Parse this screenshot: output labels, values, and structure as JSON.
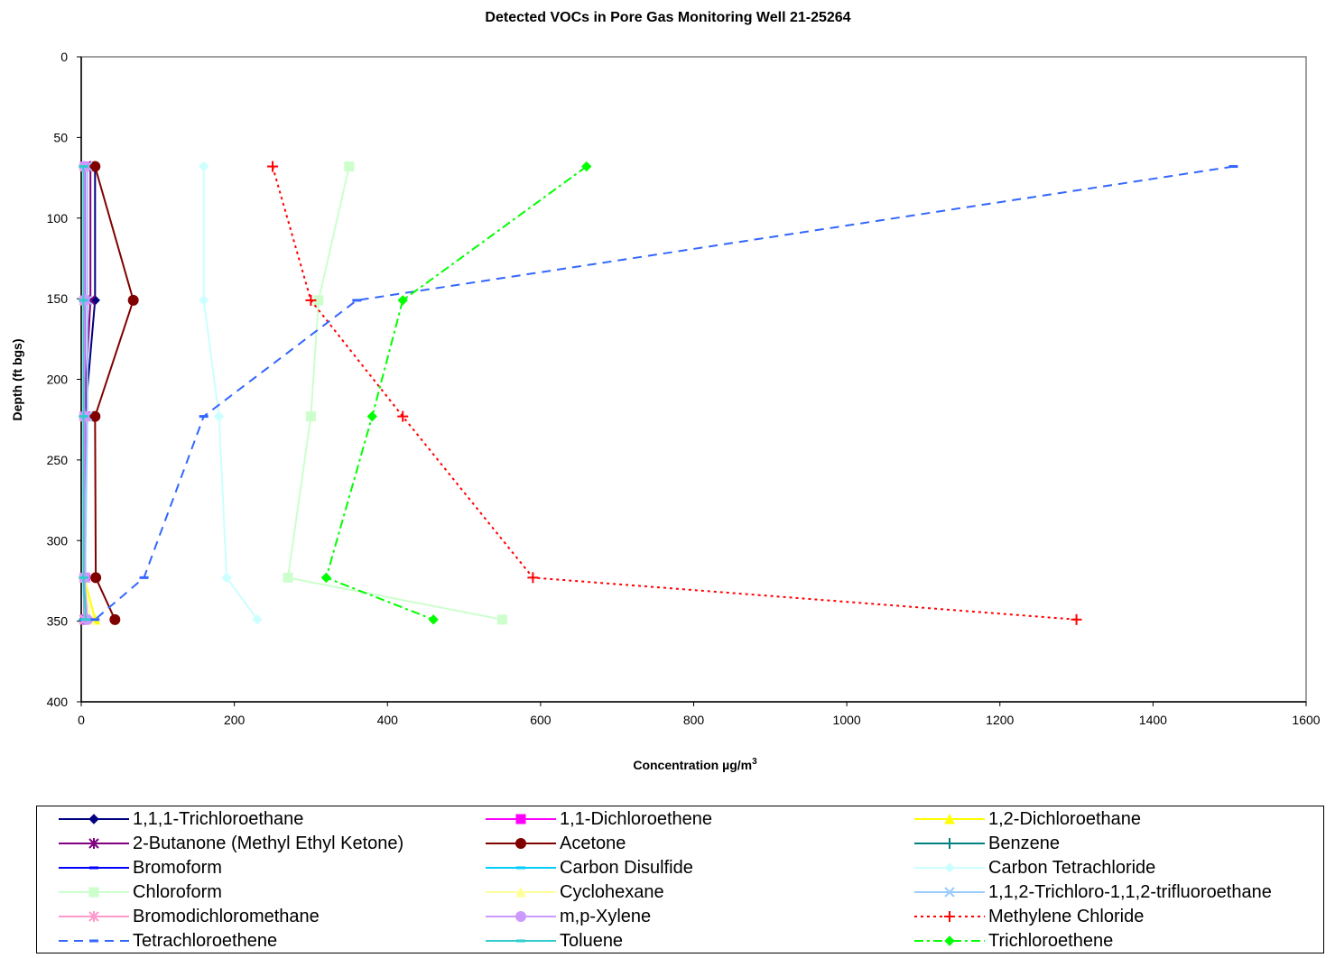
{
  "chart_data": {
    "type": "line",
    "title": "Detected VOCs in Pore Gas Monitoring Well 21-25264",
    "xlabel": "Concentration µg/m",
    "xlabel_superscript": "3",
    "ylabel": "Depth (ft bgs)",
    "xlim": [
      0,
      1600
    ],
    "ylim": [
      0,
      400
    ],
    "y_inverted": true,
    "x_ticks": [
      0,
      200,
      400,
      600,
      800,
      1000,
      1200,
      1400,
      1600
    ],
    "y_ticks": [
      0,
      50,
      100,
      150,
      200,
      250,
      300,
      350,
      400
    ],
    "grid": false,
    "legend_position": "bottom",
    "series": [
      {
        "name": "1,1,1-Trichloroethane",
        "color": "#000080",
        "dash": "",
        "marker": "diamond",
        "points": [
          [
            18,
            68
          ],
          [
            18,
            151
          ],
          [
            5,
            223
          ],
          [
            5,
            323
          ],
          [
            5,
            349
          ]
        ]
      },
      {
        "name": "1,1-Dichloroethene",
        "color": "#ff00ff",
        "dash": "",
        "marker": "square",
        "points": [
          [
            5,
            68
          ],
          [
            5,
            151
          ],
          [
            5,
            223
          ],
          [
            5,
            323
          ],
          [
            5,
            349
          ]
        ]
      },
      {
        "name": "1,2-Dichloroethane",
        "color": "#ffff00",
        "dash": "",
        "marker": "triangle",
        "points": [
          [
            4,
            68
          ],
          [
            4,
            151
          ],
          [
            4,
            223
          ],
          [
            4,
            323
          ],
          [
            18,
            349
          ]
        ]
      },
      {
        "name": "2-Butanone (Methyl Ethyl Ketone)",
        "color": "#800080",
        "dash": "",
        "marker": "star",
        "points": [
          [
            12,
            68
          ],
          [
            12,
            151
          ],
          [
            4,
            223
          ],
          [
            4,
            323
          ],
          [
            4,
            349
          ]
        ]
      },
      {
        "name": "Acetone",
        "color": "#800000",
        "dash": "",
        "marker": "circle",
        "points": [
          [
            18,
            68
          ],
          [
            68,
            151
          ],
          [
            18,
            223
          ],
          [
            19,
            323
          ],
          [
            44,
            349
          ]
        ]
      },
      {
        "name": "Benzene",
        "color": "#008080",
        "dash": "",
        "marker": "plus",
        "points": [
          [
            4,
            68
          ],
          [
            4,
            151
          ],
          [
            4,
            223
          ],
          [
            4,
            323
          ],
          [
            4,
            349
          ]
        ]
      },
      {
        "name": "Bromoform",
        "color": "#0000ff",
        "dash": "",
        "marker": "dash",
        "points": [
          [
            4,
            68
          ],
          [
            4,
            151
          ],
          [
            4,
            223
          ],
          [
            4,
            323
          ],
          [
            4,
            349
          ]
        ]
      },
      {
        "name": "Carbon Disulfide",
        "color": "#00ccff",
        "dash": "",
        "marker": "dash",
        "points": [
          [
            3,
            68
          ],
          [
            3,
            151
          ],
          [
            3,
            223
          ],
          [
            3,
            323
          ],
          [
            4,
            349
          ]
        ]
      },
      {
        "name": "Carbon Tetrachloride",
        "color": "#ccffff",
        "dash": "",
        "marker": "diamond",
        "points": [
          [
            160,
            68
          ],
          [
            160,
            151
          ],
          [
            180,
            223
          ],
          [
            190,
            323
          ],
          [
            230,
            349
          ]
        ]
      },
      {
        "name": "Chloroform",
        "color": "#ccffcc",
        "dash": "",
        "marker": "square",
        "points": [
          [
            350,
            68
          ],
          [
            310,
            151
          ],
          [
            300,
            223
          ],
          [
            270,
            323
          ],
          [
            550,
            349
          ]
        ]
      },
      {
        "name": "Cyclohexane",
        "color": "#ffff99",
        "dash": "",
        "marker": "triangle",
        "points": [
          [
            4,
            68
          ],
          [
            4,
            151
          ],
          [
            4,
            223
          ],
          [
            4,
            323
          ],
          [
            12,
            349
          ]
        ]
      },
      {
        "name": "1,1,2-Trichloro-1,1,2-trifluoroethane",
        "color": "#99ccff",
        "dash": "",
        "marker": "x",
        "points": [
          [
            8,
            68
          ],
          [
            8,
            151
          ],
          [
            8,
            223
          ],
          [
            5,
            323
          ],
          [
            5,
            349
          ]
        ]
      },
      {
        "name": "Bromodichloromethane",
        "color": "#ff99cc",
        "dash": "",
        "marker": "star",
        "points": [
          [
            4,
            68
          ],
          [
            4,
            151
          ],
          [
            4,
            223
          ],
          [
            4,
            323
          ],
          [
            4,
            349
          ]
        ]
      },
      {
        "name": "m,p-Xylene",
        "color": "#cc99ff",
        "dash": "",
        "marker": "circle",
        "points": [
          [
            4,
            68
          ],
          [
            4,
            151
          ],
          [
            4,
            223
          ],
          [
            4,
            323
          ],
          [
            8,
            349
          ]
        ]
      },
      {
        "name": "Methylene Chloride",
        "color": "#ff0000",
        "dash": "3,4",
        "marker": "plus",
        "points": [
          [
            250,
            68
          ],
          [
            300,
            151
          ],
          [
            420,
            223
          ],
          [
            590,
            323
          ],
          [
            1300,
            349
          ]
        ]
      },
      {
        "name": "Tetrachloroethene",
        "color": "#3366ff",
        "dash": "10,7",
        "marker": "dash",
        "points": [
          [
            1505,
            68
          ],
          [
            360,
            151
          ],
          [
            160,
            223
          ],
          [
            82,
            323
          ],
          [
            18,
            349
          ]
        ]
      },
      {
        "name": "Toluene",
        "color": "#33cccc",
        "dash": "",
        "marker": "dash",
        "points": [
          [
            3,
            68
          ],
          [
            3,
            151
          ],
          [
            3,
            223
          ],
          [
            3,
            323
          ],
          [
            6,
            349
          ]
        ]
      },
      {
        "name": "Trichloroethene",
        "color": "#00ff00",
        "dash": "10,4,3,4",
        "marker": "diamond",
        "points": [
          [
            660,
            68
          ],
          [
            420,
            151
          ],
          [
            380,
            223
          ],
          [
            320,
            323
          ],
          [
            460,
            349
          ]
        ]
      }
    ]
  }
}
